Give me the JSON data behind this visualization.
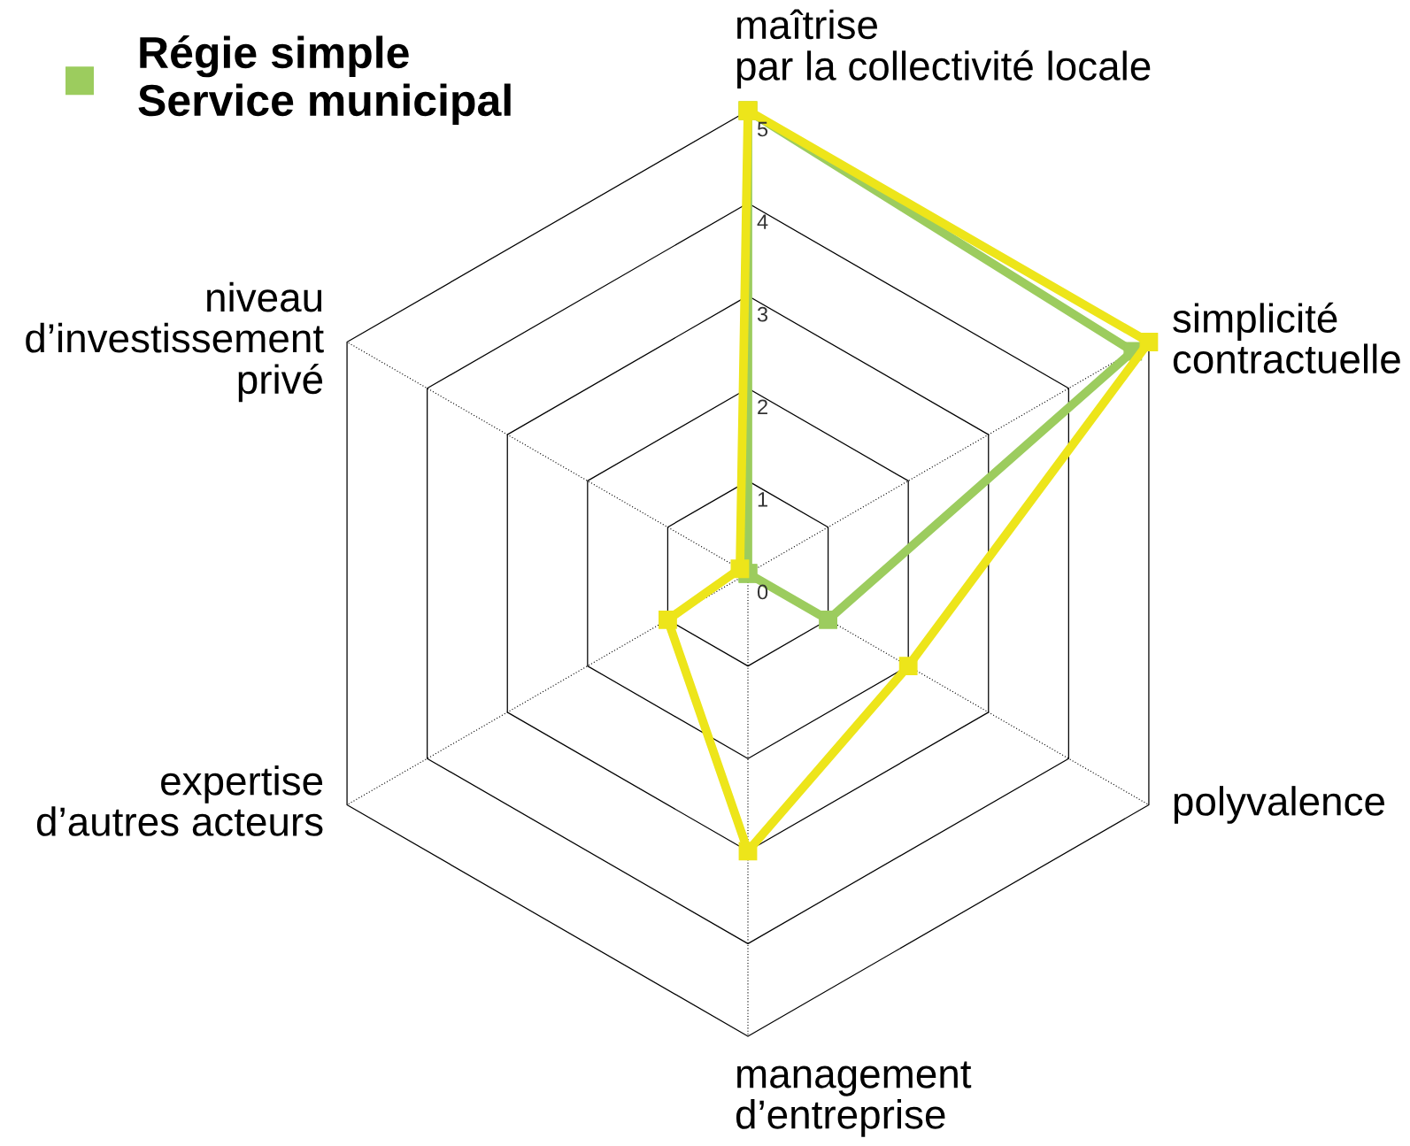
{
  "chart_data": {
    "type": "radar",
    "categories": [
      "maîtrise\npar la collectivité locale",
      "simplicité\ncontractuelle",
      "polyvalence",
      "management\nd’entreprise",
      "expertise\nd’autres acteurs",
      "niveau\nd’investissement\nprivé"
    ],
    "series": [
      {
        "name": "Régie simple\nService municipal",
        "color": "#9ccc5e",
        "values": [
          5,
          4.8,
          1,
          0,
          0,
          0
        ]
      },
      {
        "color": "#ede51a",
        "values": [
          5,
          5,
          2,
          3,
          1,
          0.1
        ]
      }
    ],
    "ylim": [
      0,
      5
    ],
    "yticks": [
      0,
      1,
      2,
      3,
      4,
      5
    ],
    "marker": "square",
    "legend": "top left",
    "grid": true
  }
}
